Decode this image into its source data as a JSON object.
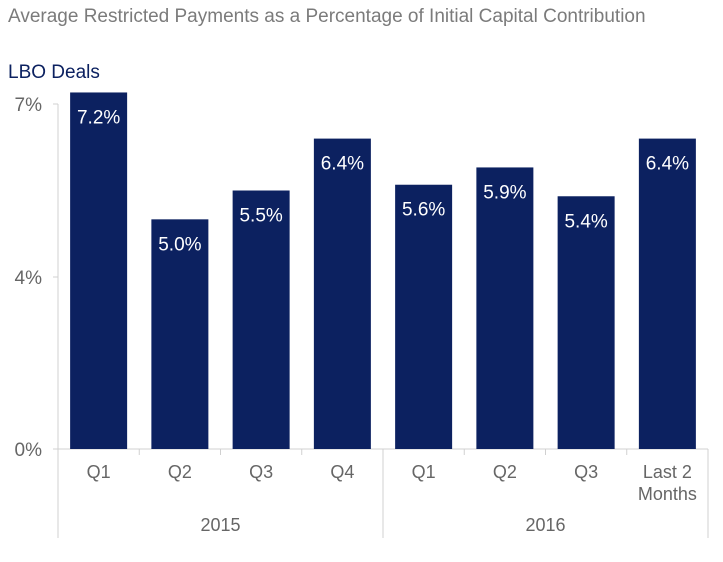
{
  "chart_data": {
    "type": "bar",
    "title": "Average Restricted Payments as a Percentage of Initial Capital Contribution",
    "subtitle": "LBO Deals",
    "categories": [
      "Q1",
      "Q2",
      "Q3",
      "Q4",
      "Q1",
      "Q2",
      "Q3",
      "Last 2 Months"
    ],
    "category_groups": [
      {
        "label": "2015",
        "categories": [
          "Q1",
          "Q2",
          "Q3",
          "Q4"
        ]
      },
      {
        "label": "2016",
        "categories": [
          "Q1",
          "Q2",
          "Q3",
          "Last 2 Months"
        ]
      }
    ],
    "values": [
      7.2,
      5.0,
      5.5,
      6.4,
      5.6,
      5.9,
      5.4,
      6.4
    ],
    "data_labels": [
      "7.2%",
      "5.0%",
      "5.5%",
      "6.4%",
      "5.6%",
      "5.9%",
      "5.4%",
      "6.4%"
    ],
    "y_ticks": [
      {
        "value": 0,
        "label": "0%"
      },
      {
        "value": 4,
        "label": "4%"
      },
      {
        "value": 7,
        "label": "7%"
      }
    ],
    "ylim": [
      0,
      8
    ],
    "bar_color": "#0c2160",
    "title_color": "#7b7b7b",
    "subtitle_color": "#0c2160",
    "grid": false,
    "legend": false
  }
}
